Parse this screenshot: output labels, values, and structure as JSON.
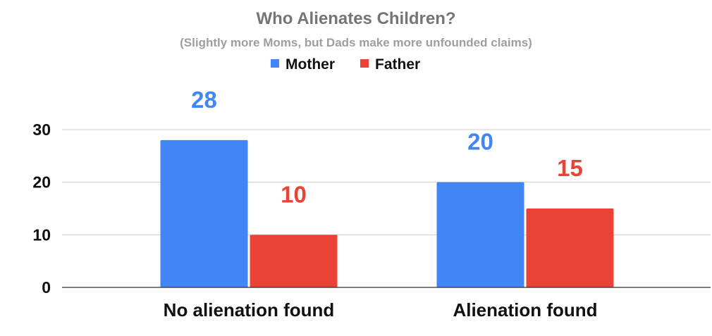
{
  "chart_data": {
    "type": "bar",
    "title": "Who Alienates Children?",
    "subtitle": "(Slightly more Moms, but Dads make more unfounded claims)",
    "xlabel": "",
    "ylabel": "",
    "categories": [
      "No alienation found",
      "Alienation found"
    ],
    "series": [
      {
        "name": "Mother",
        "values": [
          28,
          20
        ],
        "color": "#4285F4"
      },
      {
        "name": "Father",
        "values": [
          10,
          15
        ],
        "color": "#EA4335"
      }
    ],
    "ylim": [
      0,
      30
    ],
    "yticks": [
      0,
      10,
      20,
      30
    ],
    "ytick_labels": [
      "0",
      "10",
      "20",
      "30"
    ],
    "data_labels": [
      [
        "28",
        "20"
      ],
      [
        "10",
        "15"
      ]
    ],
    "grid": true,
    "legend_position": "top-center"
  }
}
